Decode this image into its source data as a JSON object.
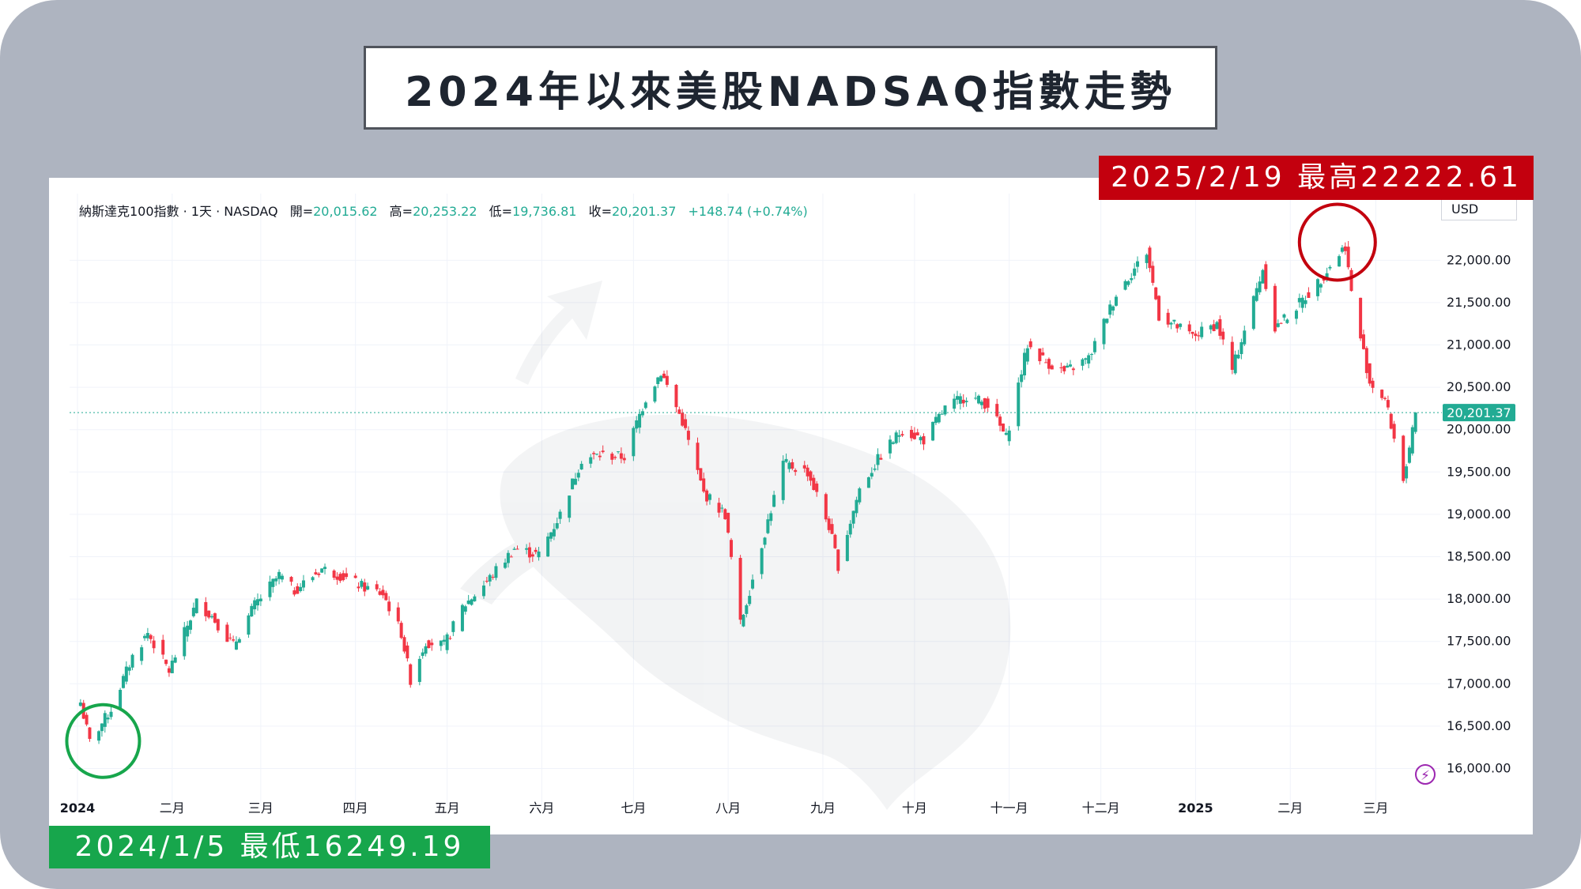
{
  "title": "2024年以來美股NADSAQ指數走勢",
  "legend": {
    "name": "納斯達克100指數 · 1天 · NASDAQ",
    "open_label": "開=",
    "open_value": "20,015.62",
    "high_label": "高=",
    "high_value": "20,253.22",
    "low_label": "低=",
    "low_value": "19,736.81",
    "close_label": "收=",
    "close_value": "20,201.37",
    "change": "+148.74 (+0.74%)"
  },
  "currency": "USD",
  "last_price_label": "20,201.37",
  "high_annotation": "2025/2/19  最高22222.61",
  "low_annotation": "2024/1/5  最低16249.19",
  "colors": {
    "up": "#22ab94",
    "down": "#f23645",
    "high_marker": "#c3000e",
    "low_marker": "#17a64c",
    "last_price_line": "#22ab94"
  },
  "chart_data": {
    "type": "candlestick",
    "title": "2024年以來美股NADSAQ指數走勢",
    "ylim": [
      15650,
      22600
    ],
    "y_ticks": [
      16000,
      16500,
      17000,
      17500,
      18000,
      18500,
      19000,
      19500,
      20000,
      20500,
      21000,
      21500,
      22000
    ],
    "y_tick_labels": [
      "16,000.00",
      "16,500.00",
      "17,000.00",
      "17,500.00",
      "18,000.00",
      "18,500.00",
      "19,000.00",
      "19,500.00",
      "20,000.00",
      "20,500.00",
      "21,000.00",
      "21,500.00",
      "22,000.00"
    ],
    "x_labels": [
      {
        "date": "2024-01-01",
        "label": "2024",
        "bold": true
      },
      {
        "date": "2024-02-01",
        "label": "二月"
      },
      {
        "date": "2024-03-01",
        "label": "三月"
      },
      {
        "date": "2024-04-01",
        "label": "四月"
      },
      {
        "date": "2024-05-01",
        "label": "五月"
      },
      {
        "date": "2024-06-01",
        "label": "六月"
      },
      {
        "date": "2024-07-01",
        "label": "七月"
      },
      {
        "date": "2024-08-01",
        "label": "八月"
      },
      {
        "date": "2024-09-01",
        "label": "九月"
      },
      {
        "date": "2024-10-01",
        "label": "十月"
      },
      {
        "date": "2024-11-01",
        "label": "十一月"
      },
      {
        "date": "2024-12-01",
        "label": "十二月"
      },
      {
        "date": "2025-01-01",
        "label": "2025",
        "bold": true
      },
      {
        "date": "2025-02-01",
        "label": "二月"
      },
      {
        "date": "2025-03-01",
        "label": "三月"
      }
    ],
    "last_close": 20201.37,
    "marked_high": {
      "date": "2025-02-19",
      "value": 22222.61
    },
    "marked_low": {
      "date": "2024-01-05",
      "value": 16249.19
    },
    "closes": [
      {
        "date": "2024-01-02",
        "value": 16780
      },
      {
        "date": "2024-01-05",
        "value": 16310
      },
      {
        "date": "2024-01-12",
        "value": 16700
      },
      {
        "date": "2024-01-19",
        "value": 17320
      },
      {
        "date": "2024-01-24",
        "value": 17600
      },
      {
        "date": "2024-01-31",
        "value": 17150
      },
      {
        "date": "2024-02-05",
        "value": 17600
      },
      {
        "date": "2024-02-09",
        "value": 17960
      },
      {
        "date": "2024-02-14",
        "value": 17800
      },
      {
        "date": "2024-02-21",
        "value": 17450
      },
      {
        "date": "2024-02-28",
        "value": 17930
      },
      {
        "date": "2024-03-07",
        "value": 18280
      },
      {
        "date": "2024-03-12",
        "value": 18100
      },
      {
        "date": "2024-03-21",
        "value": 18360
      },
      {
        "date": "2024-03-27",
        "value": 18280
      },
      {
        "date": "2024-04-03",
        "value": 18150
      },
      {
        "date": "2024-04-10",
        "value": 18060
      },
      {
        "date": "2024-04-16",
        "value": 17600
      },
      {
        "date": "2024-04-19",
        "value": 17050
      },
      {
        "date": "2024-04-24",
        "value": 17500
      },
      {
        "date": "2024-04-30",
        "value": 17450
      },
      {
        "date": "2024-05-06",
        "value": 17900
      },
      {
        "date": "2024-05-15",
        "value": 18250
      },
      {
        "date": "2024-05-23",
        "value": 18600
      },
      {
        "date": "2024-05-31",
        "value": 18520
      },
      {
        "date": "2024-06-07",
        "value": 19000
      },
      {
        "date": "2024-06-14",
        "value": 19650
      },
      {
        "date": "2024-06-20",
        "value": 19700
      },
      {
        "date": "2024-06-28",
        "value": 19680
      },
      {
        "date": "2024-07-05",
        "value": 20370
      },
      {
        "date": "2024-07-10",
        "value": 20680
      },
      {
        "date": "2024-07-17",
        "value": 20100
      },
      {
        "date": "2024-07-24",
        "value": 19250
      },
      {
        "date": "2024-07-31",
        "value": 19000
      },
      {
        "date": "2024-08-05",
        "value": 17700
      },
      {
        "date": "2024-08-12",
        "value": 18650
      },
      {
        "date": "2024-08-19",
        "value": 19600
      },
      {
        "date": "2024-08-27",
        "value": 19500
      },
      {
        "date": "2024-09-03",
        "value": 18860
      },
      {
        "date": "2024-09-06",
        "value": 18400
      },
      {
        "date": "2024-09-13",
        "value": 19300
      },
      {
        "date": "2024-09-20",
        "value": 19700
      },
      {
        "date": "2024-09-27",
        "value": 20000
      },
      {
        "date": "2024-10-04",
        "value": 19880
      },
      {
        "date": "2024-10-11",
        "value": 20250
      },
      {
        "date": "2024-10-18",
        "value": 20400
      },
      {
        "date": "2024-10-25",
        "value": 20300
      },
      {
        "date": "2024-10-31",
        "value": 19900
      },
      {
        "date": "2024-11-07",
        "value": 21000
      },
      {
        "date": "2024-11-13",
        "value": 20800
      },
      {
        "date": "2024-11-19",
        "value": 20680
      },
      {
        "date": "2024-11-27",
        "value": 20840
      },
      {
        "date": "2024-12-06",
        "value": 21600
      },
      {
        "date": "2024-12-16",
        "value": 22100
      },
      {
        "date": "2024-12-20",
        "value": 21350
      },
      {
        "date": "2024-12-31",
        "value": 21100
      },
      {
        "date": "2025-01-08",
        "value": 21250
      },
      {
        "date": "2025-01-13",
        "value": 20700
      },
      {
        "date": "2025-01-23",
        "value": 21900
      },
      {
        "date": "2025-01-27",
        "value": 21200
      },
      {
        "date": "2025-02-03",
        "value": 21450
      },
      {
        "date": "2025-02-10",
        "value": 21730
      },
      {
        "date": "2025-02-19",
        "value": 22175
      },
      {
        "date": "2025-02-21",
        "value": 21610
      },
      {
        "date": "2025-02-27",
        "value": 20560
      },
      {
        "date": "2025-03-04",
        "value": 20360
      },
      {
        "date": "2025-03-10",
        "value": 19430
      },
      {
        "date": "2025-03-12",
        "value": 19720
      },
      {
        "date": "2025-03-14",
        "value": 20201.37
      }
    ]
  }
}
